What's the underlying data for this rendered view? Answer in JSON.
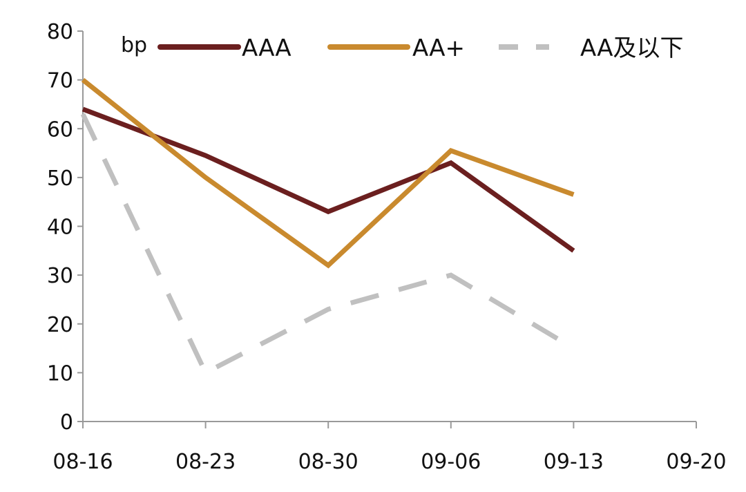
{
  "chart_data": {
    "type": "line",
    "title": "",
    "xlabel": "",
    "ylabel": "",
    "unit_label": "bp",
    "categories": [
      "08-16",
      "08-23",
      "08-30",
      "09-06",
      "09-13",
      "09-20"
    ],
    "ylim": [
      0,
      80
    ],
    "yticks": [
      0,
      10,
      20,
      30,
      40,
      50,
      60,
      70,
      80
    ],
    "grid": false,
    "legend_position": "top",
    "series": [
      {
        "name": "AAA",
        "color": "#6b1f1f",
        "dash": "solid",
        "values": [
          64,
          54.5,
          43,
          53,
          35,
          null
        ]
      },
      {
        "name": "AA+",
        "color": "#c98a2e",
        "dash": "solid",
        "values": [
          70,
          50,
          32,
          55.5,
          46.5,
          null
        ]
      },
      {
        "name": "AA及以下",
        "color": "#c0c0c0",
        "dash": "dashed",
        "values": [
          63,
          10,
          23,
          30,
          15,
          null
        ]
      }
    ]
  }
}
